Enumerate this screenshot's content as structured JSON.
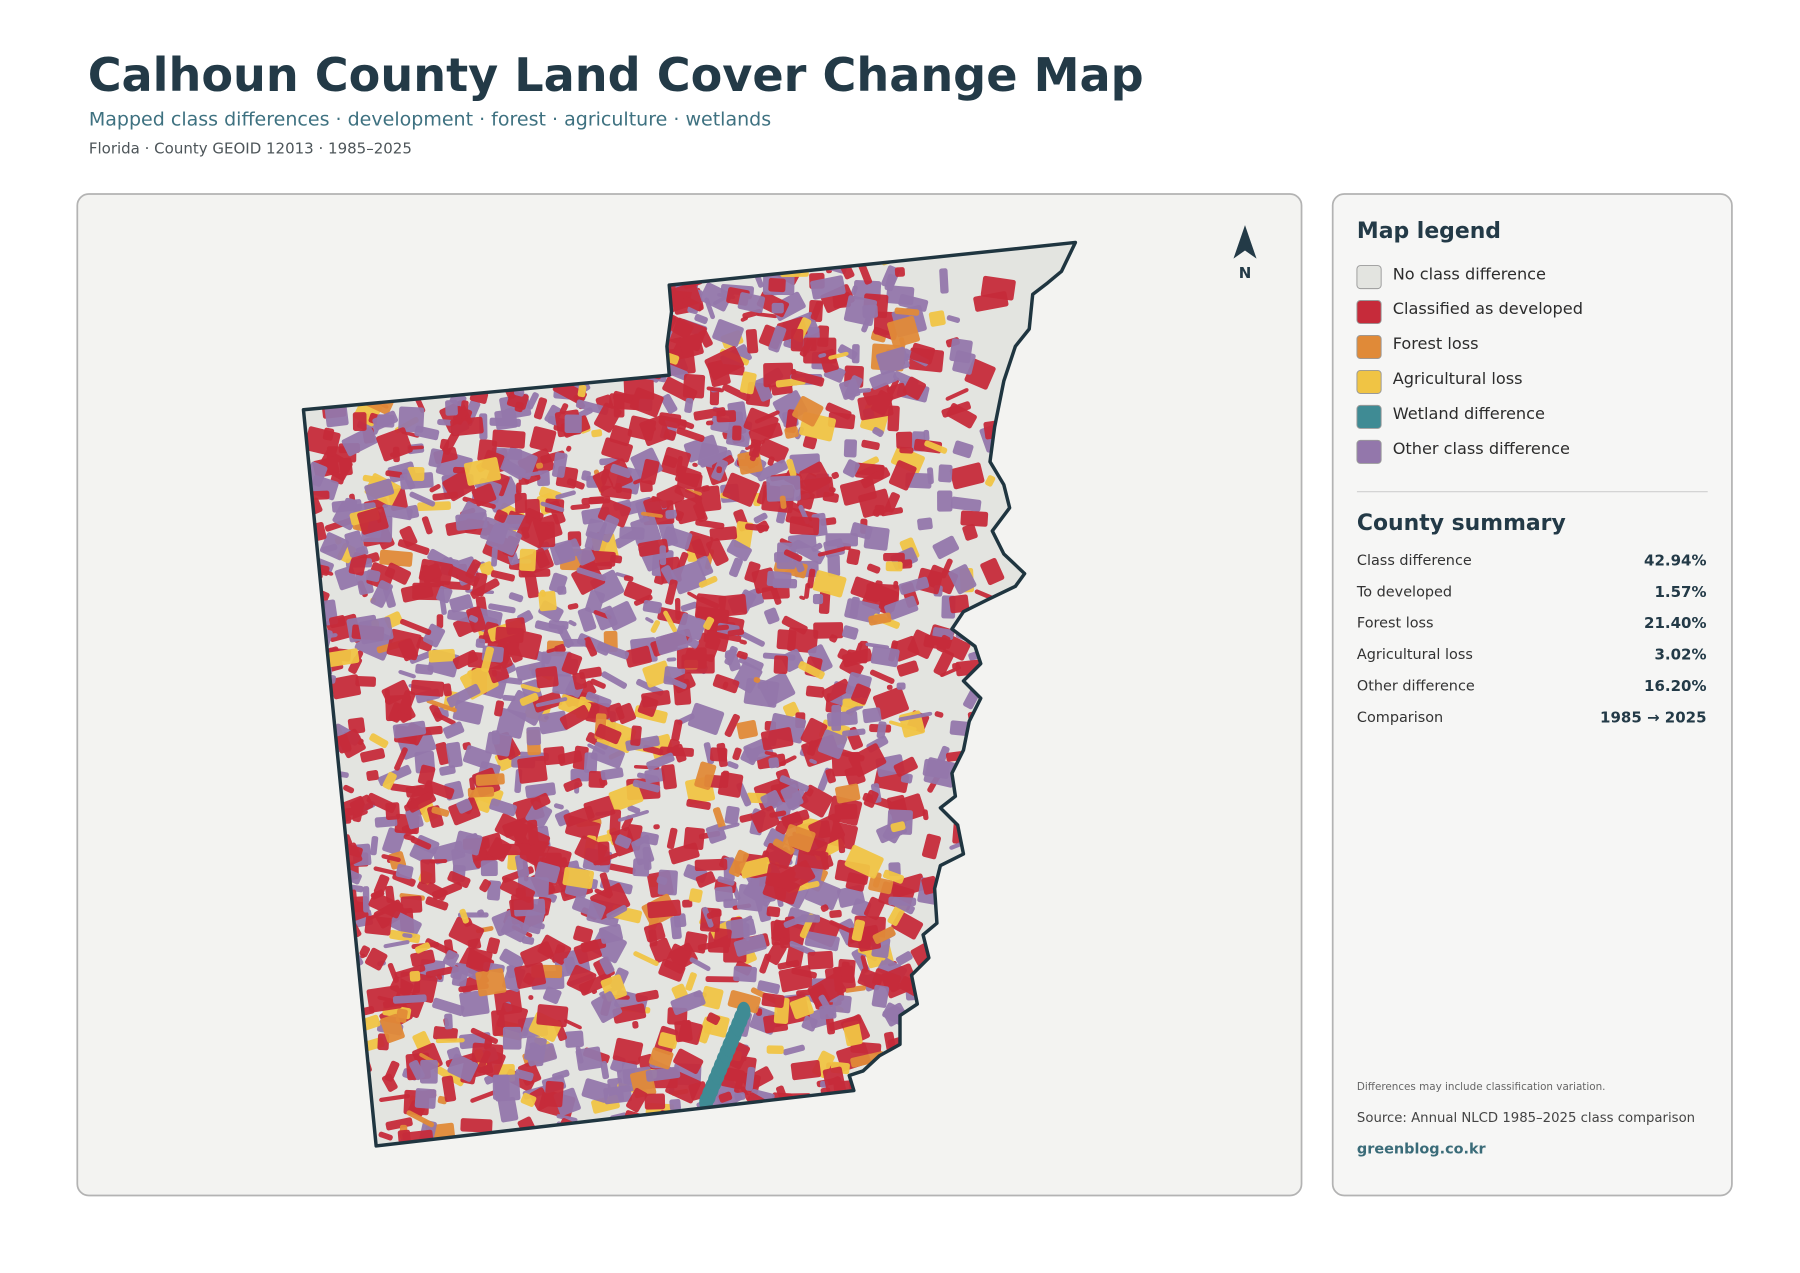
{
  "header": {
    "title": "Calhoun County Land Cover Change Map",
    "subtitle": "Mapped class differences · development · forest · agriculture · wetlands",
    "meta": "Florida · County GEOID 12013 · 1985–2025"
  },
  "map": {
    "north_label": "N"
  },
  "legend": {
    "title": "Map legend",
    "items": [
      {
        "label": "No class difference",
        "color": "#e3e4e0"
      },
      {
        "label": "Classified as developed",
        "color": "#c62b3a"
      },
      {
        "label": "Forest loss",
        "color": "#e08a38"
      },
      {
        "label": "Agricultural loss",
        "color": "#f0c444"
      },
      {
        "label": "Wetland difference",
        "color": "#3f8b94"
      },
      {
        "label": "Other class difference",
        "color": "#9377ab"
      }
    ]
  },
  "summary": {
    "title": "County summary",
    "rows": [
      [
        "Class difference",
        "42.94%"
      ],
      [
        "To developed",
        "1.57%"
      ],
      [
        "Forest loss",
        "21.40%"
      ],
      [
        "Agricultural loss",
        "3.02%"
      ],
      [
        "Other difference",
        "16.20%"
      ],
      [
        "Comparison",
        "1985 → 2025"
      ]
    ]
  },
  "notes": {
    "caveat": "Differences may include classification variation.",
    "source": "Source: Annual NLCD 1985–2025 class comparison",
    "credit": "greenblog.co.kr"
  }
}
